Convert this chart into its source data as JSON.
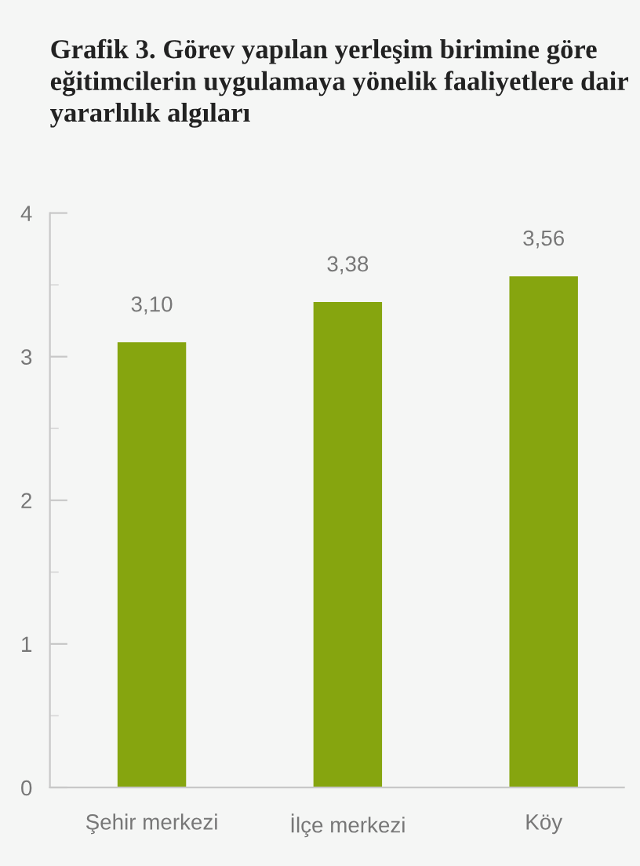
{
  "chart_data": {
    "type": "bar",
    "title": "Grafik 3. Görev yapılan yerleşim birimine göre eğitimcilerin uygulamaya yönelik faaliyetlere dair yararlılık algıları",
    "categories": [
      "Şehir merkezi",
      "İlçe merkezi",
      "Köy"
    ],
    "values": [
      3.1,
      3.38,
      3.56
    ],
    "value_labels": [
      "3,10",
      "3,38",
      "3,56"
    ],
    "color": "#86a50f",
    "ylim": [
      0,
      4
    ],
    "yticks": [
      0,
      {
        "value": 0.5,
        "label": null
      },
      1,
      {
        "value": 1.5,
        "label": null
      },
      2,
      {
        "value": 2.5,
        "label": null
      },
      3,
      {
        "value": 3.5,
        "label": null
      },
      4
    ],
    "grid": false,
    "legend": false
  }
}
